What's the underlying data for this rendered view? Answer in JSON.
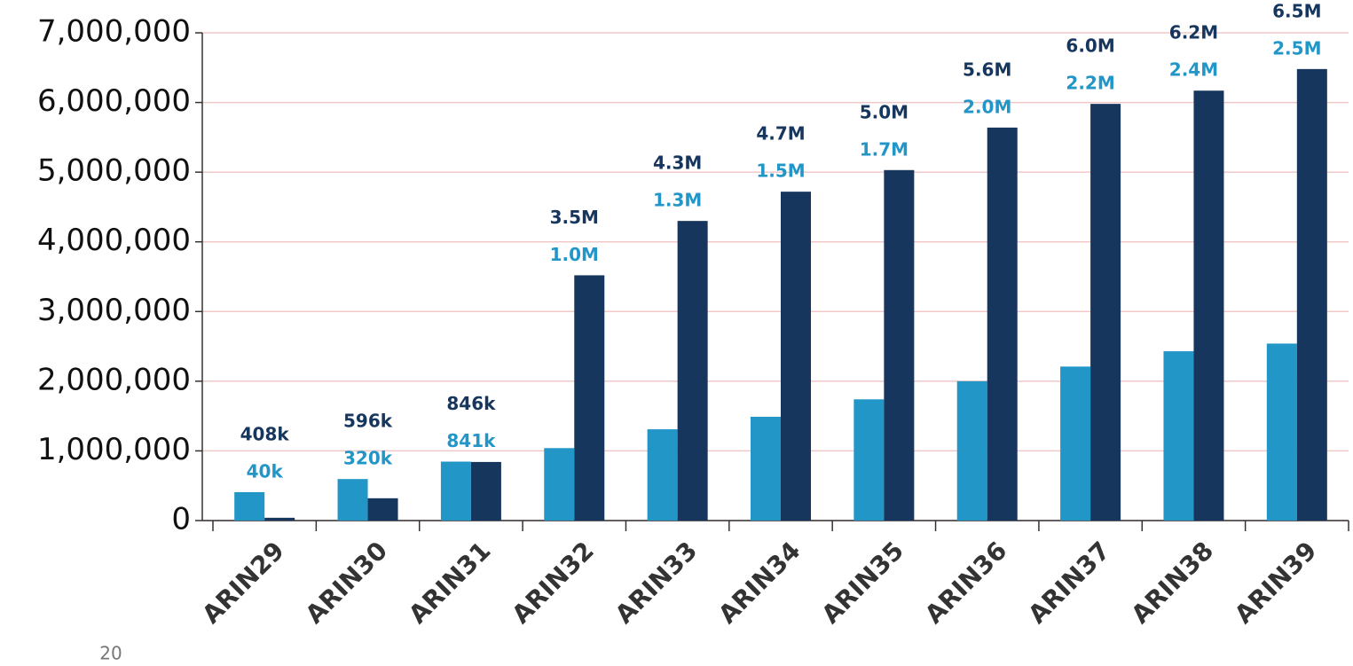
{
  "page_number": "20",
  "chart_data": {
    "type": "bar",
    "categories": [
      "ARIN29",
      "ARIN30",
      "ARIN31",
      "ARIN32",
      "ARIN33",
      "ARIN34",
      "ARIN35",
      "ARIN36",
      "ARIN37",
      "ARIN38",
      "ARIN39"
    ],
    "series": [
      {
        "color": "#2396c8",
        "values": [
          408000,
          596000,
          846000,
          1040000,
          1310000,
          1490000,
          1740000,
          2000000,
          2210000,
          2430000,
          2540000
        ],
        "value_labels": [
          "408k",
          "596k",
          "846k",
          "1.0M",
          "1.3M",
          "1.5M",
          "1.7M",
          "2.0M",
          "2.2M",
          "2.4M",
          "2.5M"
        ]
      },
      {
        "color": "#17365d",
        "values": [
          40000,
          320000,
          841000,
          3520000,
          4300000,
          4720000,
          5030000,
          5640000,
          5980000,
          6170000,
          6480000
        ],
        "value_labels": [
          "40k",
          "320k",
          "841k",
          "3.5M",
          "4.3M",
          "4.7M",
          "5.0M",
          "5.6M",
          "6.0M",
          "6.2M",
          "6.5M"
        ]
      }
    ],
    "ylim": [
      0,
      7000000
    ],
    "yticks": [
      0,
      {
        "value": 1000000,
        "label": "1,000,000"
      },
      {
        "value": 2000000,
        "label": "2,000,000"
      },
      {
        "value": 3000000,
        "label": "3,000,000"
      },
      {
        "value": 4000000,
        "label": "4,000,000"
      },
      {
        "value": 5000000,
        "label": "5,000,000"
      },
      {
        "value": 6000000,
        "label": "6,000,000"
      },
      {
        "value": 7000000,
        "label": "7,000,000"
      }
    ],
    "grid": true
  }
}
